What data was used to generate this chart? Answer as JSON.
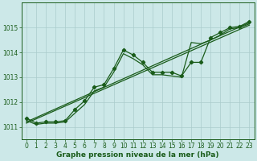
{
  "background_color": "#cce8e8",
  "grid_color": "#aacccc",
  "line_color": "#1a5c1a",
  "marker_color": "#1a5c1a",
  "xlabel": "Graphe pression niveau de la mer (hPa)",
  "xlabel_fontsize": 6.5,
  "tick_fontsize": 5.5,
  "xlim": [
    -0.5,
    23.5
  ],
  "ylim": [
    1010.5,
    1016.0
  ],
  "yticks": [
    1011,
    1012,
    1013,
    1014,
    1015
  ],
  "xticks": [
    0,
    1,
    2,
    3,
    4,
    5,
    6,
    7,
    8,
    9,
    10,
    11,
    12,
    13,
    14,
    15,
    16,
    17,
    18,
    19,
    20,
    21,
    22,
    23
  ],
  "series1_x": [
    0,
    1,
    2,
    3,
    4,
    5,
    6,
    7,
    8,
    9,
    10,
    11,
    12,
    13,
    14,
    15,
    16,
    17,
    18,
    19,
    20,
    21,
    22,
    23
  ],
  "series1_y": [
    1011.35,
    1011.15,
    1011.2,
    1011.2,
    1011.25,
    1011.7,
    1012.05,
    1012.6,
    1012.7,
    1013.35,
    1014.1,
    1013.9,
    1013.6,
    1013.2,
    1013.2,
    1013.2,
    1013.05,
    1013.6,
    1013.6,
    1014.6,
    1014.8,
    1015.0,
    1015.05,
    1015.25
  ],
  "series2_x": [
    0,
    1,
    2,
    3,
    4,
    5,
    6,
    7,
    8,
    9,
    10,
    11,
    12,
    13,
    14,
    15,
    16,
    17,
    18,
    19,
    20,
    21,
    22,
    23
  ],
  "series2_y": [
    1011.25,
    1011.1,
    1011.15,
    1011.15,
    1011.2,
    1011.55,
    1011.9,
    1012.45,
    1012.6,
    1013.2,
    1013.95,
    1013.75,
    1013.5,
    1013.1,
    1013.1,
    1013.05,
    1013.0,
    1014.4,
    1014.35,
    1014.5,
    1014.7,
    1014.95,
    1015.0,
    1015.15
  ],
  "series3_x": [
    0,
    23
  ],
  "series3_y": [
    1011.2,
    1015.2
  ],
  "series4_x": [
    0,
    23
  ],
  "series4_y": [
    1011.15,
    1015.1
  ]
}
